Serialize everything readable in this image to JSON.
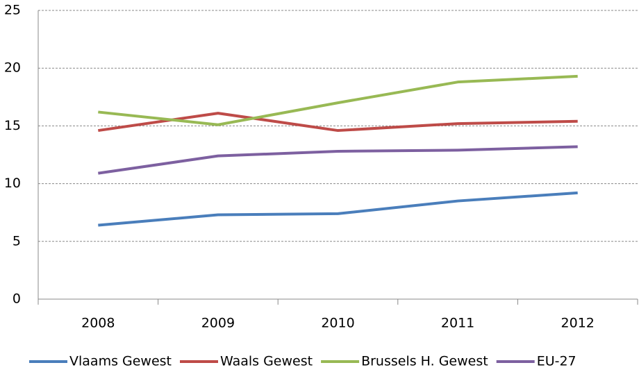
{
  "chart_data": {
    "type": "line",
    "categories": [
      "2008",
      "2009",
      "2010",
      "2011",
      "2012"
    ],
    "series": [
      {
        "name": "Vlaams Gewest",
        "color": "#4a7ebb",
        "values": [
          6.4,
          7.3,
          7.4,
          8.5,
          9.2
        ]
      },
      {
        "name": "Waals Gewest",
        "color": "#be4b48",
        "values": [
          14.6,
          16.1,
          14.6,
          15.2,
          15.4
        ]
      },
      {
        "name": "Brussels H. Gewest",
        "color": "#98b954",
        "values": [
          16.2,
          15.1,
          17.0,
          18.8,
          19.3
        ]
      },
      {
        "name": "EU-27",
        "color": "#7d60a0",
        "values": [
          10.9,
          12.4,
          12.8,
          12.9,
          13.2
        ]
      }
    ],
    "ylim": [
      0,
      25
    ],
    "yticks": [
      0,
      5,
      10,
      15,
      20,
      25
    ],
    "grid": true,
    "legend": "bottom"
  }
}
